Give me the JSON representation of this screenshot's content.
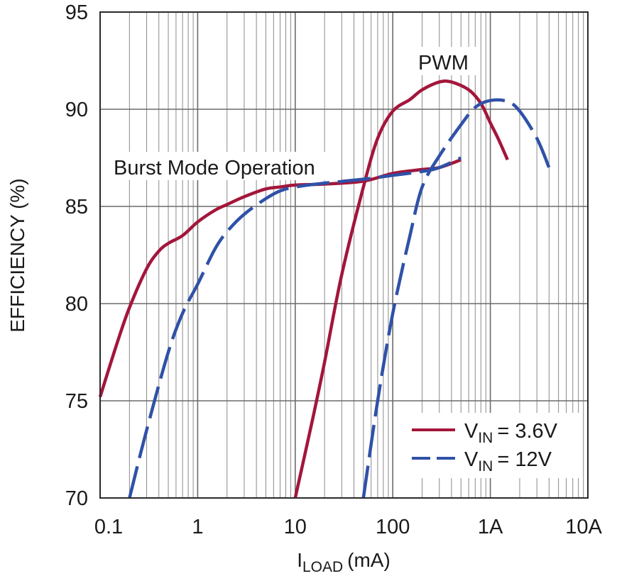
{
  "chart_data": {
    "type": "line",
    "ylabel": "EFFICIENCY (%)",
    "xlabel": {
      "main": "I",
      "sub": "LOAD",
      "unit": "(mA)"
    },
    "x_scale": "log",
    "xlim": [
      0.1,
      10000
    ],
    "ylim": [
      70,
      95
    ],
    "x_tick_values": [
      0.1,
      1,
      10,
      100,
      1000,
      10000
    ],
    "x_tick_labels": [
      "0.1",
      "1",
      "10",
      "100",
      "1A",
      "10A"
    ],
    "y_tick_labels": [
      "70",
      "75",
      "80",
      "85",
      "90",
      "95"
    ],
    "grid": true,
    "legend_position": "bottom-right",
    "annotations": [
      "Burst Mode Operation",
      "PWM"
    ],
    "series": [
      {
        "name": "VIN = 3.6V",
        "legend_main": "V",
        "legend_sub": "IN",
        "legend_value": "= 3.6V",
        "color": "#a3163a",
        "dash": "solid",
        "segments": [
          {
            "x": [
              0.1,
              0.15,
              0.2,
              0.3,
              0.4,
              0.5,
              0.7,
              1,
              1.5,
              2,
              3,
              5,
              7,
              10,
              20,
              50,
              100,
              200,
              300,
              500
            ],
            "y": [
              75.2,
              78.0,
              79.8,
              81.8,
              82.7,
              83.1,
              83.5,
              84.2,
              84.8,
              85.1,
              85.5,
              85.9,
              86.0,
              86.1,
              86.15,
              86.3,
              86.7,
              86.9,
              87.0,
              87.4
            ]
          },
          {
            "x": [
              10,
              15,
              20,
              30,
              50,
              70,
              100,
              150,
              200,
              300,
              400,
              600,
              800,
              1000,
              1200,
              1500
            ],
            "y": [
              70.0,
              74.0,
              77.0,
              81.5,
              86.0,
              88.5,
              89.9,
              90.5,
              91.0,
              91.4,
              91.4,
              91.0,
              90.3,
              89.3,
              88.5,
              87.4
            ]
          }
        ]
      },
      {
        "name": "VIN = 12V",
        "legend_main": "V",
        "legend_sub": "IN",
        "legend_value": "= 12V",
        "color": "#2f51a8",
        "dash": "long-dash",
        "segments": [
          {
            "x": [
              0.2,
              0.3,
              0.5,
              0.7,
              1,
              1.5,
              2,
              3,
              5,
              7,
              10,
              20,
              50,
              100,
              200,
              300,
              500
            ],
            "y": [
              70.0,
              73.5,
              77.5,
              79.5,
              81.0,
              82.8,
              83.7,
              84.6,
              85.4,
              85.8,
              86.0,
              86.2,
              86.4,
              86.6,
              86.8,
              87.0,
              87.5
            ]
          },
          {
            "x": [
              50,
              70,
              100,
              150,
              200,
              300,
              500,
              700,
              1000,
              1500,
              2000,
              3000,
              4000
            ],
            "y": [
              70.0,
              75.0,
              79.5,
              83.5,
              86.0,
              87.6,
              89.2,
              90.1,
              90.45,
              90.4,
              89.9,
              88.5,
              87.0
            ]
          }
        ]
      }
    ]
  }
}
